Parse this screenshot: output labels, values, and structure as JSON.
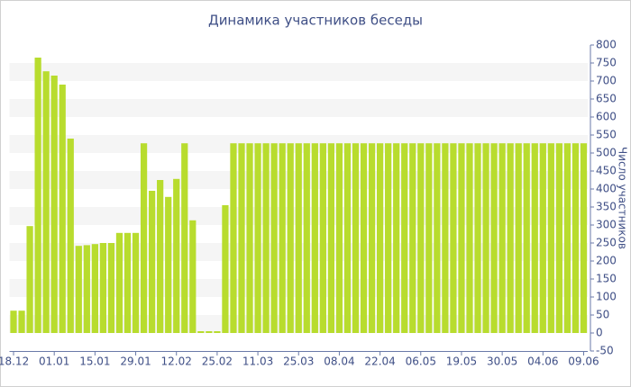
{
  "chart_data": {
    "type": "bar",
    "title": "Динамика участников беседы",
    "y_label": "Число участников",
    "categories": [
      "18.12",
      null,
      null,
      null,
      null,
      "01.01",
      null,
      null,
      null,
      null,
      "15.01",
      null,
      null,
      null,
      null,
      "29.01",
      null,
      null,
      null,
      null,
      "12.02",
      null,
      null,
      null,
      null,
      "25.02",
      null,
      null,
      null,
      null,
      "11.03",
      null,
      null,
      null,
      null,
      "25.03",
      null,
      null,
      null,
      null,
      "08.04",
      null,
      null,
      null,
      null,
      "22.04",
      null,
      null,
      null,
      null,
      "06.05",
      null,
      null,
      null,
      null,
      "19.05",
      null,
      null,
      null,
      null,
      "30.05",
      null,
      null,
      null,
      null,
      "04.06",
      null,
      null,
      null,
      null,
      "09.06"
    ],
    "values": [
      62,
      62,
      297,
      765,
      727,
      715,
      690,
      540,
      242,
      244,
      247,
      250,
      250,
      278,
      278,
      278,
      527,
      395,
      425,
      378,
      428,
      527,
      313,
      5,
      5,
      5,
      355,
      527,
      527,
      527,
      527,
      527,
      527,
      527,
      527,
      527,
      527,
      527,
      527,
      527,
      527,
      527,
      527,
      527,
      527,
      527,
      527,
      527,
      527,
      527,
      527,
      527,
      527,
      527,
      527,
      527,
      527,
      527,
      527,
      527,
      527,
      527,
      527,
      527,
      527,
      527,
      527,
      527,
      527,
      527,
      527
    ],
    "color": "#b8dc2e",
    "ylim": [
      -50,
      800
    ],
    "yticks": [
      -50,
      0,
      50,
      100,
      150,
      200,
      250,
      300,
      350,
      400,
      450,
      500,
      550,
      600,
      650,
      700,
      750,
      800
    ],
    "grid": true,
    "y_axis_side": "right"
  }
}
